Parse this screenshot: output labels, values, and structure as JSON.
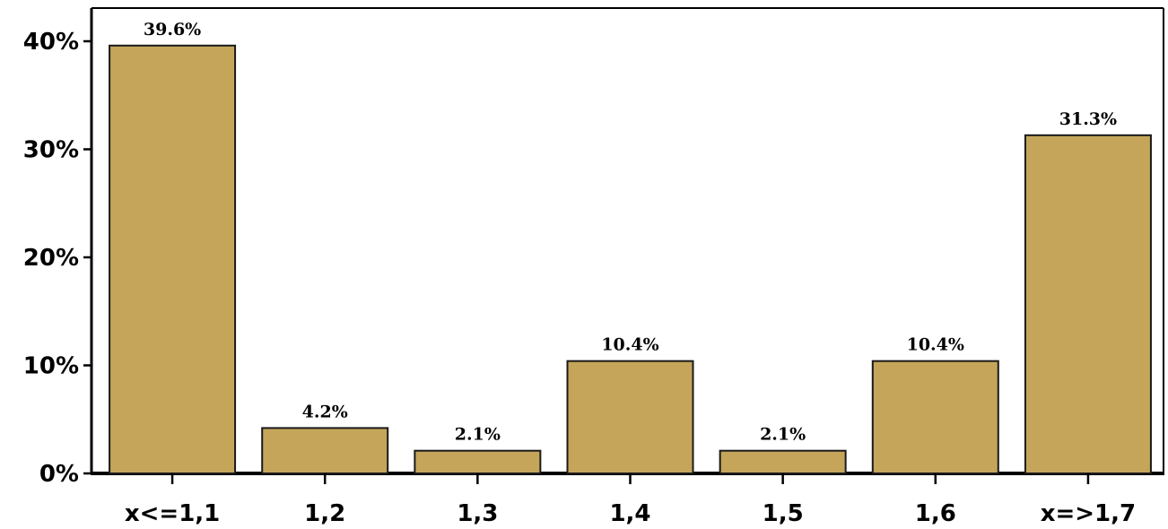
{
  "chart_data": {
    "type": "bar",
    "title": "",
    "xlabel": "",
    "ylabel": "",
    "categories": [
      "x<=1,1",
      "1,2",
      "1,3",
      "1,4",
      "1,5",
      "1,6",
      "x=>1,7"
    ],
    "values": [
      39.6,
      4.2,
      2.1,
      10.4,
      2.1,
      10.4,
      31.3
    ],
    "data_labels": [
      "39.6%",
      "4.2%",
      "2.1%",
      "10.4%",
      "2.1%",
      "10.4%",
      "31.3%"
    ],
    "ylim": [
      0,
      40
    ],
    "yticks": [
      0,
      10,
      20,
      30,
      40
    ],
    "ytick_labels": [
      "0%",
      "10%",
      "20%",
      "30%",
      "40%"
    ],
    "grid": false,
    "legend": "none",
    "colors": {
      "bar_fill": "#C4A55A",
      "bar_stroke": "#1a1a1a",
      "axis": "#000000"
    }
  }
}
